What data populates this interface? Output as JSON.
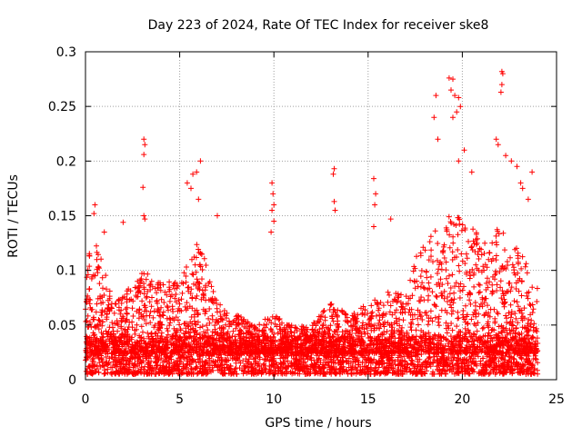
{
  "chart_data": {
    "type": "scatter",
    "title": "Day 223 of 2024, Rate Of TEC Index for receiver ske8",
    "xlabel": "GPS time / hours",
    "ylabel": "ROTI / TECUs",
    "xlim": [
      0,
      25
    ],
    "ylim": [
      0,
      0.3
    ],
    "x_ticks": [
      0,
      5,
      10,
      15,
      20,
      25
    ],
    "x_tick_labels": [
      "0",
      "5",
      "10",
      "15",
      "20",
      "25"
    ],
    "y_ticks": [
      0,
      0.05,
      0.1,
      0.15,
      0.2,
      0.25,
      0.3
    ],
    "y_tick_labels": [
      "0",
      "0.05",
      "0.1",
      "0.15",
      "0.2",
      "0.25",
      "0.3"
    ],
    "grid": true,
    "marker": "plus",
    "color": "#ff0000",
    "x_range_of_data": [
      0,
      24
    ],
    "baseline_range": [
      0.005,
      0.04
    ],
    "activity_envelope": {
      "x": [
        0,
        0.5,
        1.5,
        3,
        4,
        5,
        6,
        7,
        8,
        9,
        10,
        11,
        12,
        13,
        14,
        15,
        16,
        17,
        17.5,
        18,
        19,
        20,
        21,
        22,
        23,
        24
      ],
      "y": [
        0.12,
        0.13,
        0.07,
        0.1,
        0.09,
        0.09,
        0.13,
        0.07,
        0.06,
        0.05,
        0.06,
        0.05,
        0.05,
        0.07,
        0.06,
        0.07,
        0.08,
        0.08,
        0.11,
        0.13,
        0.15,
        0.15,
        0.13,
        0.14,
        0.12,
        0.09
      ]
    },
    "notable_points": [
      {
        "x": 0.5,
        "y": 0.16
      },
      {
        "x": 0.45,
        "y": 0.152
      },
      {
        "x": 1.0,
        "y": 0.135
      },
      {
        "x": 2.0,
        "y": 0.144
      },
      {
        "x": 3.1,
        "y": 0.22
      },
      {
        "x": 3.15,
        "y": 0.215
      },
      {
        "x": 3.1,
        "y": 0.206
      },
      {
        "x": 3.05,
        "y": 0.176
      },
      {
        "x": 3.1,
        "y": 0.15
      },
      {
        "x": 3.15,
        "y": 0.147
      },
      {
        "x": 5.4,
        "y": 0.18
      },
      {
        "x": 5.6,
        "y": 0.175
      },
      {
        "x": 5.7,
        "y": 0.188
      },
      {
        "x": 5.9,
        "y": 0.19
      },
      {
        "x": 6.1,
        "y": 0.2
      },
      {
        "x": 6.0,
        "y": 0.165
      },
      {
        "x": 7.0,
        "y": 0.15
      },
      {
        "x": 9.9,
        "y": 0.18
      },
      {
        "x": 9.95,
        "y": 0.17
      },
      {
        "x": 10.0,
        "y": 0.16
      },
      {
        "x": 9.9,
        "y": 0.155
      },
      {
        "x": 10.0,
        "y": 0.145
      },
      {
        "x": 9.85,
        "y": 0.135
      },
      {
        "x": 13.2,
        "y": 0.193
      },
      {
        "x": 13.15,
        "y": 0.188
      },
      {
        "x": 13.2,
        "y": 0.163
      },
      {
        "x": 13.25,
        "y": 0.155
      },
      {
        "x": 15.3,
        "y": 0.184
      },
      {
        "x": 15.4,
        "y": 0.17
      },
      {
        "x": 15.35,
        "y": 0.16
      },
      {
        "x": 15.3,
        "y": 0.14
      },
      {
        "x": 16.2,
        "y": 0.147
      },
      {
        "x": 18.6,
        "y": 0.26
      },
      {
        "x": 18.5,
        "y": 0.24
      },
      {
        "x": 18.7,
        "y": 0.22
      },
      {
        "x": 19.3,
        "y": 0.276
      },
      {
        "x": 19.5,
        "y": 0.275
      },
      {
        "x": 19.4,
        "y": 0.265
      },
      {
        "x": 19.6,
        "y": 0.26
      },
      {
        "x": 19.7,
        "y": 0.245
      },
      {
        "x": 19.8,
        "y": 0.258
      },
      {
        "x": 19.5,
        "y": 0.24
      },
      {
        "x": 19.9,
        "y": 0.25
      },
      {
        "x": 20.1,
        "y": 0.21
      },
      {
        "x": 19.8,
        "y": 0.2
      },
      {
        "x": 20.5,
        "y": 0.19
      },
      {
        "x": 22.1,
        "y": 0.282
      },
      {
        "x": 22.15,
        "y": 0.28
      },
      {
        "x": 22.1,
        "y": 0.27
      },
      {
        "x": 22.05,
        "y": 0.263
      },
      {
        "x": 21.8,
        "y": 0.22
      },
      {
        "x": 21.9,
        "y": 0.215
      },
      {
        "x": 22.3,
        "y": 0.205
      },
      {
        "x": 22.6,
        "y": 0.2
      },
      {
        "x": 22.9,
        "y": 0.195
      },
      {
        "x": 23.1,
        "y": 0.18
      },
      {
        "x": 23.2,
        "y": 0.175
      },
      {
        "x": 23.7,
        "y": 0.19
      },
      {
        "x": 23.5,
        "y": 0.165
      }
    ]
  }
}
